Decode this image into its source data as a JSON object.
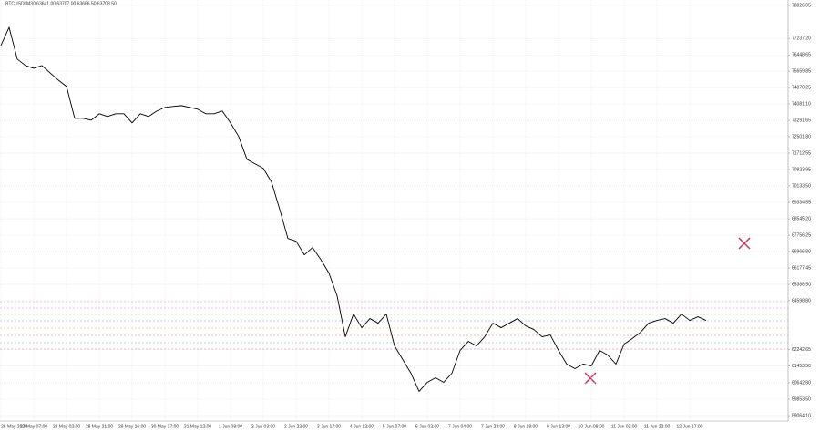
{
  "chart_data": {
    "type": "line",
    "title": "BTCUSDl,M30 63641.00 63707.00 63686.50 63703.50",
    "categories": [
      "26 May 2026",
      null,
      null,
      null,
      "27 May 07:00",
      null,
      null,
      null,
      "28 May 02:00",
      null,
      null,
      null,
      "28 May 21:00",
      null,
      null,
      null,
      "29 May 16:00",
      null,
      null,
      null,
      "30 May 17:00",
      null,
      null,
      null,
      "31 May 12:00",
      null,
      null,
      null,
      "1 Jun 08:00",
      null,
      null,
      null,
      "2 Jun 03:00",
      null,
      null,
      null,
      "2 Jun 22:00",
      null,
      null,
      null,
      "3 Jun 17:00",
      null,
      null,
      null,
      "4 Jun 12:00",
      null,
      null,
      null,
      "5 Jun 07:00",
      null,
      null,
      null,
      "6 Jun 02:00",
      null,
      null,
      null,
      "7 Jun 04:00",
      null,
      null,
      null,
      "7 Jun 23:00",
      null,
      null,
      null,
      "8 Jun 18:00",
      null,
      null,
      null,
      "9 Jun 13:00",
      null,
      null,
      null,
      "10 Jun 08:00",
      null,
      null,
      null,
      "11 Jun 03:00",
      null,
      null,
      null,
      "11 Jun 22:00",
      null,
      null,
      null,
      "12 Jun 17:00",
      null,
      null
    ],
    "series": [
      {
        "name": "BTCUSDl",
        "color": "#000000",
        "values": [
          76896,
          77773,
          76238,
          75931,
          75800,
          75931,
          75580,
          75229,
          74922,
          73387,
          73387,
          73300,
          73607,
          73475,
          73607,
          73607,
          73168,
          73607,
          73475,
          73738,
          73914,
          73958,
          74001,
          73914,
          73826,
          73607,
          73607,
          73738,
          73168,
          72510,
          71413,
          71194,
          70975,
          70317,
          68999,
          67598,
          67466,
          66808,
          67159,
          66589,
          65931,
          64834,
          62861,
          63957,
          63299,
          63738,
          63519,
          63957,
          62422,
          61764,
          61106,
          60229,
          60668,
          60887,
          60668,
          61106,
          62203,
          62641,
          62422,
          62861,
          63519,
          63299,
          63519,
          63738,
          63387,
          63212,
          62861,
          62949,
          62203,
          61545,
          61325,
          61545,
          61457,
          62203,
          61983,
          61545,
          62510,
          62773,
          63080,
          63519,
          63650,
          63738,
          63519,
          63957,
          63650,
          63826,
          63650
        ]
      }
    ],
    "ylim": [
      58800,
      79090
    ],
    "yticks": [
      {
        "value": 78826.05,
        "label": "78826.05"
      },
      {
        "value": 77237.2,
        "label": "77237.20"
      },
      {
        "value": 76448.65,
        "label": "76448.65"
      },
      {
        "value": 75659.85,
        "label": "75659.85"
      },
      {
        "value": 74870.25,
        "label": "74870.25"
      },
      {
        "value": 74081.1,
        "label": "74081.10"
      },
      {
        "value": 73291.65,
        "label": "73291.65"
      },
      {
        "value": 72501.8,
        "label": "72501.80"
      },
      {
        "value": 71712.55,
        "label": "71712.55"
      },
      {
        "value": 70923.95,
        "label": "70923.95"
      },
      {
        "value": 70133.5,
        "label": "70133.50"
      },
      {
        "value": 69334.55,
        "label": "69334.55"
      },
      {
        "value": 68545.2,
        "label": "68545.20"
      },
      {
        "value": 67756.25,
        "label": "67756.25"
      },
      {
        "value": 66966.8,
        "label": "66966.80"
      },
      {
        "value": 66177.45,
        "label": "66177.45"
      },
      {
        "value": 65388.5,
        "label": "65388.50"
      },
      {
        "value": 64598.8,
        "label": "64598.80"
      },
      {
        "value": 62242.65,
        "label": "62242.65"
      },
      {
        "value": 61453.5,
        "label": "61453.50"
      },
      {
        "value": 60642.8,
        "label": "60642.80"
      },
      {
        "value": 59853.5,
        "label": "59853.50"
      },
      {
        "value": 59064.1,
        "label": "59064.10"
      }
    ],
    "grid": true
  }
}
